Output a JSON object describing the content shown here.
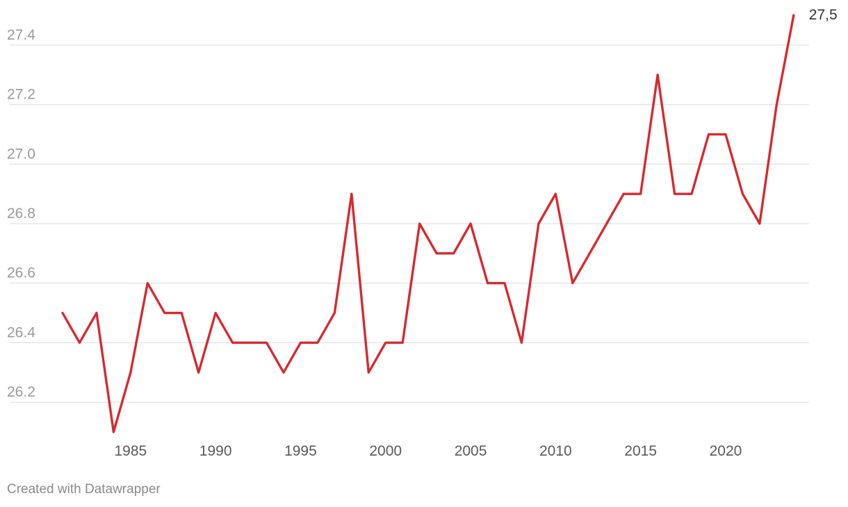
{
  "chart_data": {
    "type": "line",
    "x": [
      1981,
      1982,
      1983,
      1984,
      1985,
      1986,
      1987,
      1988,
      1989,
      1990,
      1991,
      1992,
      1993,
      1994,
      1995,
      1996,
      1997,
      1998,
      1999,
      2000,
      2001,
      2002,
      2003,
      2004,
      2005,
      2006,
      2007,
      2008,
      2009,
      2010,
      2011,
      2012,
      2013,
      2014,
      2015,
      2016,
      2017,
      2018,
      2019,
      2020,
      2021,
      2022,
      2023,
      2024
    ],
    "series": [
      {
        "values": [
          26.5,
          26.4,
          26.5,
          26.1,
          26.3,
          26.6,
          26.5,
          26.5,
          26.3,
          26.5,
          26.4,
          26.4,
          26.4,
          26.3,
          26.4,
          26.4,
          26.5,
          26.9,
          26.3,
          26.4,
          26.4,
          26.8,
          26.7,
          26.7,
          26.8,
          26.6,
          26.6,
          26.4,
          26.8,
          26.9,
          26.6,
          26.7,
          26.8,
          26.9,
          26.9,
          27.3,
          26.9,
          26.9,
          27.1,
          27.1,
          26.9,
          26.8,
          27.2,
          27.5
        ],
        "color": "#d62a2f"
      }
    ],
    "end_label": "27,5",
    "yticks": [
      "26.2",
      "26.4",
      "26.6",
      "26.8",
      "27.0",
      "27.2",
      "27.4"
    ],
    "xticks": [
      "1985",
      "1990",
      "1995",
      "2000",
      "2005",
      "2010",
      "2015",
      "2020"
    ],
    "xlim": [
      1978.5,
      2025
    ],
    "ylim": [
      26.1,
      27.5
    ],
    "grid": true,
    "title": "",
    "xlabel": "",
    "ylabel": ""
  },
  "footer": {
    "credit": "Created with Datawrapper"
  }
}
